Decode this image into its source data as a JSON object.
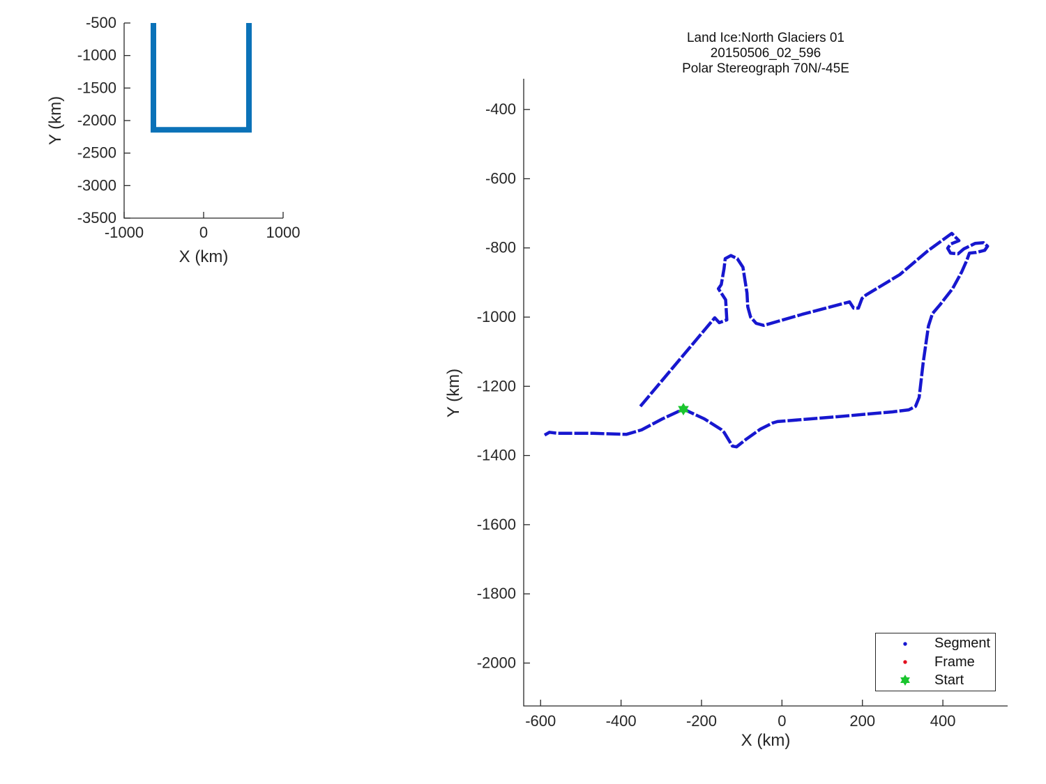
{
  "figure": {
    "background": "#ffffff",
    "axis_color": "#262626"
  },
  "chart_data": [
    {
      "id": "overview",
      "type": "line",
      "title": "",
      "xlabel": "X (km)",
      "ylabel": "Y (km)",
      "xlim": [
        -1000,
        1000
      ],
      "ylim": [
        -3500,
        -500
      ],
      "grid": false,
      "xticks": [
        -1000,
        0,
        1000
      ],
      "xtick_labels": [
        "-1000",
        "0",
        "1000"
      ],
      "yticks": [
        -500,
        -1000,
        -1500,
        -2000,
        -2500,
        -3000,
        -3500
      ],
      "ytick_labels": [
        "-500",
        "-1000",
        "-1500",
        "-2000",
        "-2500",
        "-3000",
        "-3500"
      ],
      "series": [
        {
          "name": "flight-track-overview",
          "type": "line",
          "color": "#0b72b8",
          "linewidth": 8,
          "linecap": "butt",
          "linejoin": "miter",
          "x": [
            -632,
            -632,
            570,
            570
          ],
          "y": [
            -500,
            -2142,
            -2142,
            -500
          ]
        }
      ]
    },
    {
      "id": "main",
      "type": "line",
      "title_lines": [
        "Land Ice:North Glaciers 01",
        "20150506_02_596",
        "Polar Stereograph 70N/-45E"
      ],
      "xlabel": "X (km)",
      "ylabel": "Y (km)",
      "xlim": [
        -642,
        561
      ],
      "ylim": [
        -2124,
        -311
      ],
      "grid": false,
      "xticks": [
        -600,
        -400,
        -200,
        0,
        200,
        400
      ],
      "xtick_labels": [
        "-600",
        "-400",
        "-200",
        "0",
        "200",
        "400"
      ],
      "yticks": [
        -400,
        -600,
        -800,
        -1000,
        -1200,
        -1400,
        -1600,
        -1800,
        -2000
      ],
      "ytick_labels": [
        "-400",
        "-600",
        "-800",
        "-1000",
        "-1200",
        "-1400",
        "-1600",
        "-1800",
        "-2000"
      ],
      "legend": {
        "location": "southeast",
        "items": [
          {
            "label": "Segment",
            "marker": "dot",
            "color": "#1717cf"
          },
          {
            "label": "Frame",
            "marker": "dot",
            "color": "#e3101f"
          },
          {
            "label": "Start",
            "marker": "hexagram",
            "color": "#1ac52e"
          }
        ]
      },
      "series": [
        {
          "name": "Segment",
          "type": "line",
          "color": "#1717cf",
          "linewidth": 4.5,
          "dashed": true,
          "linecap": "butt",
          "linejoin": "round",
          "x": [
            -352,
            -167,
            -156,
            -137,
            -140,
            -158,
            -151,
            -144,
            -141,
            -127,
            -111,
            -97,
            -87,
            -85,
            -78,
            -64,
            -45,
            50,
            168,
            178,
            190,
            199,
            209,
            293,
            362,
            422,
            440,
            419,
            412,
            419,
            438,
            452,
            480,
            501,
            511,
            504,
            483,
            466,
            459,
            447,
            424,
            393,
            374,
            364,
            351,
            341,
            332,
            315,
            275,
            137,
            -11,
            -23,
            -54,
            -89,
            -113,
            -123,
            -144,
            -151,
            -193,
            -245,
            -297,
            -349,
            -387,
            -470,
            -557,
            -578,
            -590
          ],
          "y": [
            -1258,
            -1002,
            -1016,
            -1008,
            -950,
            -918,
            -906,
            -860,
            -831,
            -822,
            -831,
            -856,
            -930,
            -970,
            -1000,
            -1018,
            -1024,
            -992,
            -956,
            -974,
            -974,
            -946,
            -936,
            -877,
            -809,
            -758,
            -779,
            -789,
            -801,
            -815,
            -817,
            -803,
            -787,
            -785,
            -795,
            -807,
            -813,
            -815,
            -837,
            -869,
            -918,
            -964,
            -990,
            -1026,
            -1131,
            -1232,
            -1258,
            -1268,
            -1274,
            -1288,
            -1302,
            -1306,
            -1324,
            -1353,
            -1375,
            -1373,
            -1333,
            -1325,
            -1294,
            -1266,
            -1294,
            -1326,
            -1339,
            -1336,
            -1336,
            -1333,
            -1341
          ]
        },
        {
          "name": "Start",
          "type": "marker",
          "marker": "hexagram",
          "color": "#1ac52e",
          "size": 18,
          "x": [
            -245
          ],
          "y": [
            -1266
          ]
        }
      ]
    }
  ]
}
